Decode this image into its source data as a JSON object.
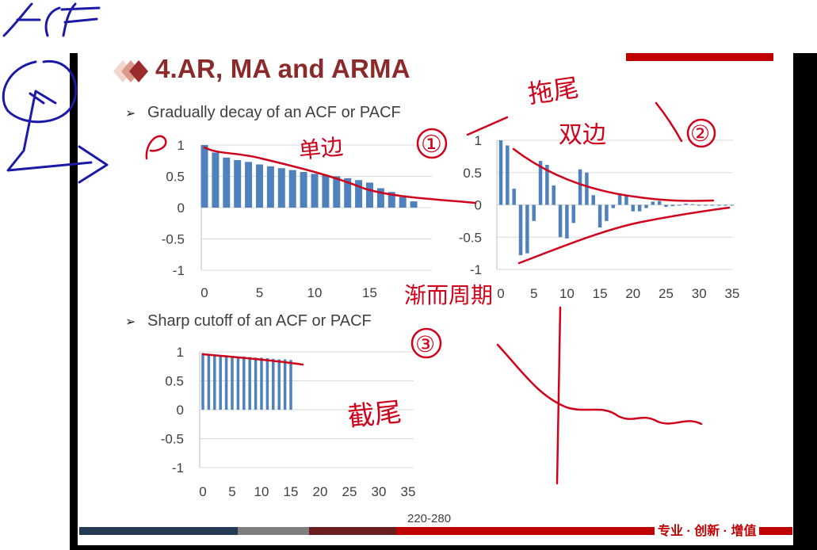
{
  "slide": {
    "title": "4.AR, MA and ARMA",
    "bullet_1": "Gradually decay of an ACF or PACF",
    "bullet_2": "Sharp cutoff of an ACF or PACF",
    "page_number": "220-280",
    "footer_slogan": "专业 · 创新 · 增值"
  },
  "colors": {
    "title": "#8b2a2a",
    "bar": "#4f81bd",
    "ink": "#d0021b",
    "pen_blue": "#1a1aa6",
    "brand_red": "#c00000"
  },
  "annotations": {
    "corner_text": "ACF",
    "dan_bian": "单边",
    "circle_1": "①",
    "tuo_wei": "拖尾",
    "shuang_bian": "双边",
    "circle_2": "②",
    "jian_xiao_zhou_qi": "渐而周期",
    "circle_3": "③",
    "jie_wei": "截尾",
    "rho": "ρ"
  },
  "chart_data": [
    {
      "type": "bar",
      "x": [
        0,
        1,
        2,
        3,
        4,
        5,
        6,
        7,
        8,
        9,
        10,
        11,
        12,
        13,
        14,
        15,
        16,
        17,
        18,
        19
      ],
      "values": [
        1,
        0.88,
        0.8,
        0.76,
        0.73,
        0.69,
        0.66,
        0.63,
        0.6,
        0.57,
        0.54,
        0.52,
        0.5,
        0.47,
        0.44,
        0.4,
        0.31,
        0.25,
        0.17,
        0.1
      ],
      "ylim": [
        -1,
        1
      ],
      "yticks": [
        "1",
        "0.5",
        "0",
        "-0.5",
        "-1"
      ],
      "xticks": [
        "0",
        "5",
        "10",
        "15"
      ],
      "grid": true
    },
    {
      "type": "bar",
      "x": [
        0,
        1,
        2,
        3,
        4,
        5,
        6,
        7,
        8,
        9,
        10,
        11,
        12,
        13,
        14,
        15,
        16,
        17,
        18,
        19,
        20,
        21,
        22,
        23,
        24,
        25,
        26,
        27,
        28,
        29,
        30,
        31,
        32,
        33,
        34,
        35
      ],
      "values": [
        1,
        0.92,
        0.25,
        -0.78,
        -0.75,
        -0.25,
        0.68,
        0.62,
        0.3,
        -0.5,
        -0.52,
        -0.28,
        0.55,
        0.5,
        0.15,
        -0.35,
        -0.25,
        -0.05,
        0.18,
        0.15,
        -0.1,
        -0.1,
        -0.05,
        0.05,
        0.06,
        -0.03,
        -0.02,
        0,
        0.02,
        0.01,
        -0.01,
        0,
        0,
        0,
        0,
        0
      ],
      "ylim": [
        -1,
        1
      ],
      "yticks": [
        "1",
        "0.5",
        "0",
        "-0.5",
        "-1"
      ],
      "xticks": [
        "0",
        "5",
        "10",
        "15",
        "20",
        "25",
        "30",
        "35"
      ],
      "grid": true
    },
    {
      "type": "bar",
      "x": [
        0,
        1,
        2,
        3,
        4,
        5,
        6,
        7,
        8,
        9,
        10,
        11,
        12,
        13,
        14,
        15
      ],
      "values": [
        0.98,
        0.96,
        0.95,
        0.94,
        0.94,
        0.93,
        0.92,
        0.92,
        0.91,
        0.9,
        0.9,
        0.89,
        0.88,
        0.87,
        0.87,
        0.86
      ],
      "ylim": [
        -1,
        1
      ],
      "yticks": [
        "1",
        "0.5",
        "0",
        "-0.5",
        "-1"
      ],
      "xticks": [
        "0",
        "5",
        "10",
        "15",
        "20",
        "25",
        "30",
        "35"
      ],
      "grid": true
    }
  ]
}
